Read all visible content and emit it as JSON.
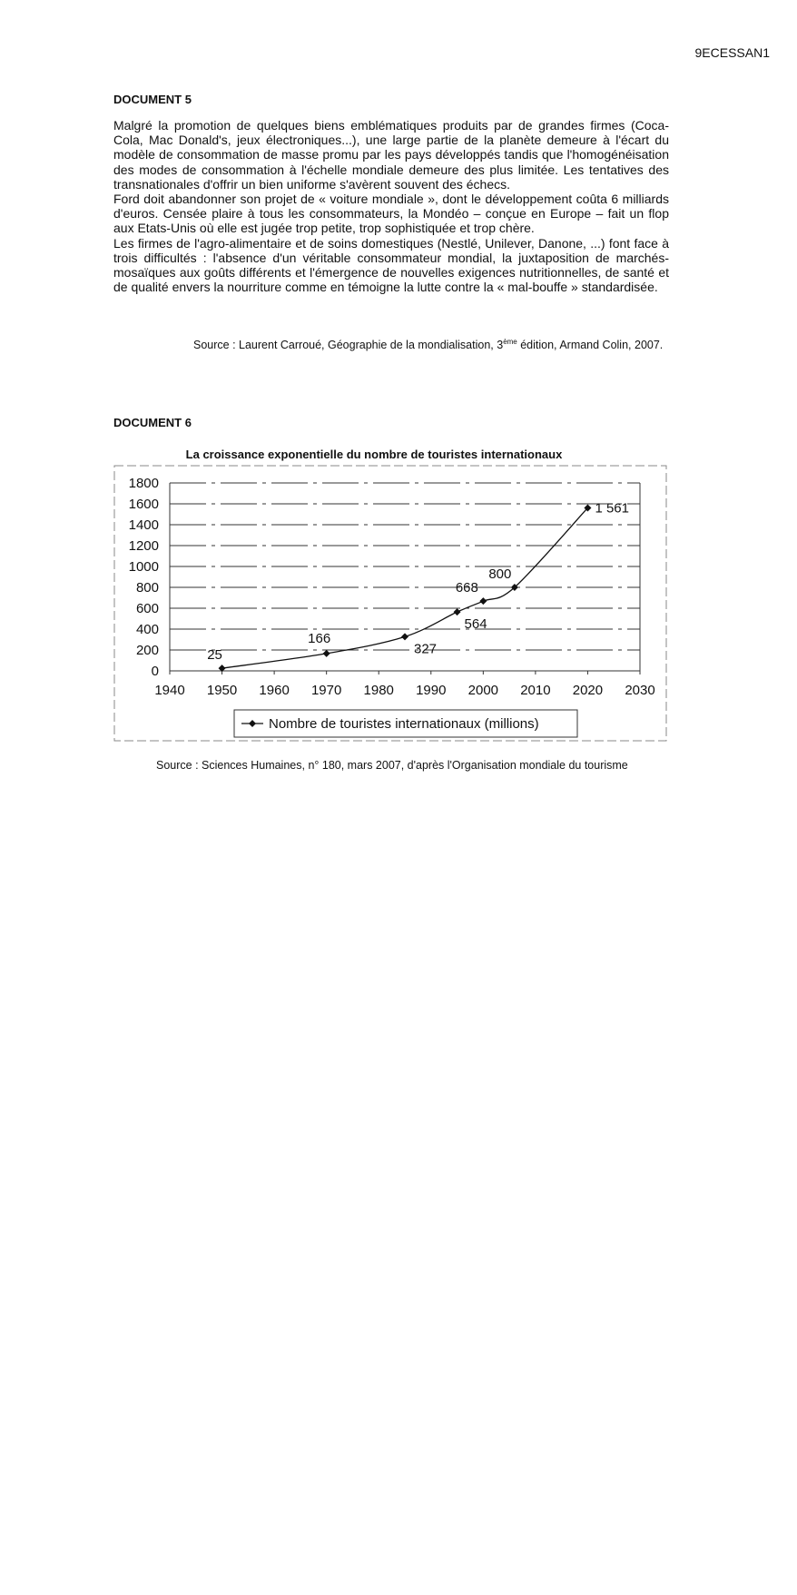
{
  "header": {
    "code": "9ECESSAN1"
  },
  "doc5": {
    "title": "DOCUMENT 5",
    "paragraphs": [
      "Malgré la promotion de quelques biens emblématiques produits par de grandes firmes (Coca-Cola, Mac Donald's, jeux électroniques...), une large partie de la planète demeure à l'écart du modèle de consommation de masse promu par les pays développés tandis que l'homogénéisation des modes de consommation à l'échelle mondiale demeure des plus limitée. Les tentatives des transnationales d'offrir un bien uniforme s'avèrent souvent des échecs.",
      "Ford doit abandonner son projet de « voiture mondiale », dont le développement coûta 6 milliards d'euros. Censée plaire à tous les consommateurs, la Mondéo – conçue en Europe – fait un flop aux Etats-Unis où elle est jugée trop petite, trop sophistiquée et trop chère.",
      "Les firmes de l'agro-alimentaire et de soins domestiques (Nestlé, Unilever, Danone, ...) font face à trois difficultés : l'absence d'un véritable consommateur mondial, la juxtaposition de marchés-mosaïques aux goûts différents et l'émergence de nouvelles exigences nutritionnelles, de santé et de qualité envers la nourriture comme en témoigne la lutte contre la « mal-bouffe » standardisée."
    ],
    "source_before": "Source : Laurent Carroué, Géographie de la mondialisation, 3",
    "source_sup": "ème",
    "source_after": " édition, Armand Colin, 2007."
  },
  "doc6": {
    "title": "DOCUMENT 6",
    "source": "Source : Sciences Humaines, n° 180, mars 2007, d'après l'Organisation mondiale du tourisme"
  },
  "chart_data": {
    "type": "line",
    "title": "La croissance exponentielle du nombre de touristes internationaux",
    "xlabel": "",
    "ylabel": "",
    "xlim": [
      1940,
      2030
    ],
    "ylim": [
      0,
      1800
    ],
    "xticks": [
      1940,
      1950,
      1960,
      1970,
      1980,
      1990,
      2000,
      2010,
      2020,
      2030
    ],
    "yticks": [
      0,
      200,
      400,
      600,
      800,
      1000,
      1200,
      1400,
      1600,
      1800
    ],
    "grid": true,
    "legend_position": "bottom",
    "series": [
      {
        "name": "Nombre de touristes internationaux (millions)",
        "x": [
          1950,
          1970,
          1985,
          1995,
          2000,
          2006,
          2020
        ],
        "values": [
          25,
          166,
          327,
          564,
          668,
          800,
          1561
        ],
        "labels": [
          "25",
          "166",
          "327",
          "564",
          "668",
          "800",
          "1 561"
        ]
      }
    ]
  }
}
